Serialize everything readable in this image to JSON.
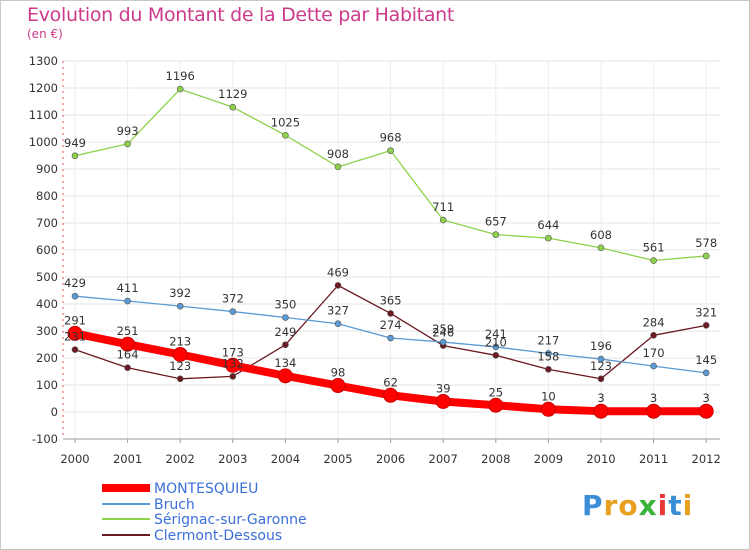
{
  "chart_data": {
    "type": "line",
    "title": "Evolution du Montant de la Dette par Habitant",
    "subtitle": "(en €)",
    "x": [
      "2000",
      "2001",
      "2002",
      "2003",
      "2004",
      "2005",
      "2006",
      "2007",
      "2008",
      "2009",
      "2010",
      "2011",
      "2012"
    ],
    "ylim": [
      -100,
      1300
    ],
    "yticks": [
      -100,
      0,
      100,
      200,
      300,
      400,
      500,
      600,
      700,
      800,
      900,
      1000,
      1100,
      1200,
      1300
    ],
    "grid": true,
    "legend_position": "bottom-left",
    "series": [
      {
        "name": "MONTESQUIEU",
        "color": "#ff0000",
        "values": [
          291,
          251,
          213,
          173,
          134,
          98,
          62,
          39,
          25,
          10,
          3,
          3,
          3
        ]
      },
      {
        "name": "Bruch",
        "color": "#5b9bd5",
        "values": [
          429,
          411,
          392,
          372,
          350,
          327,
          274,
          259,
          241,
          217,
          196,
          170,
          145
        ]
      },
      {
        "name": "Sérignac-sur-Garonne",
        "color": "#8ed14a",
        "values": [
          949,
          993,
          1196,
          1129,
          1025,
          908,
          968,
          711,
          657,
          644,
          608,
          561,
          578
        ]
      },
      {
        "name": "Clermont-Dessous",
        "color": "#6b1a22",
        "values": [
          231,
          164,
          123,
          132,
          249,
          469,
          365,
          246,
          210,
          158,
          123,
          284,
          321
        ]
      }
    ]
  },
  "logo": {
    "text": "Proxiti",
    "colors": [
      "#3b8ed6",
      "#e8a020",
      "#e8a020",
      "#3bb33b",
      "#e83a3a",
      "#3b8ed6",
      "#e8a020"
    ]
  }
}
